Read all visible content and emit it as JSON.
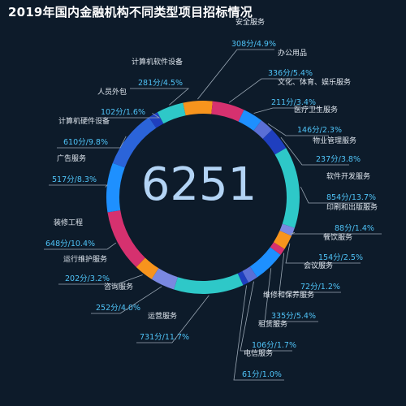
{
  "title": "2019年国内金融机构不同类型项目招标情况",
  "center_total": "6251",
  "chart_data": {
    "type": "pie",
    "title": "2019年国内金融机构不同类型项目招标情况",
    "total": 6251,
    "unit": "分",
    "slices": [
      {
        "name": "安全服务",
        "value": 308,
        "label": "308分/4.9%",
        "color": "#f7941d"
      },
      {
        "name": "办公用品",
        "value": 336,
        "label": "336分/5.4%",
        "color": "#d6316f"
      },
      {
        "name": "文化、体育、娱乐服务",
        "value": 211,
        "label": "211分/3.4%",
        "color": "#1e90ff"
      },
      {
        "name": "医疗卫生服务",
        "value": 146,
        "label": "146分/2.3%",
        "color": "#5a6fd6"
      },
      {
        "name": "物业管理服务",
        "value": 237,
        "label": "237分/3.8%",
        "color": "#1f3fbf"
      },
      {
        "name": "软件开发服务",
        "value": 854,
        "label": "854分/13.7%",
        "color": "#2ec8c8"
      },
      {
        "name": "印刷和出版服务",
        "value": 88,
        "label": "88分/1.4%",
        "color": "#7a88e0"
      },
      {
        "name": "餐饮服务",
        "value": 154,
        "label": "154分/2.5%",
        "color": "#f7941d"
      },
      {
        "name": "会议服务",
        "value": 72,
        "label": "72分/1.2%",
        "color": "#d6316f"
      },
      {
        "name": "维修和保养服务",
        "value": 335,
        "label": "335分/5.4%",
        "color": "#1e90ff"
      },
      {
        "name": "租赁服务",
        "value": 106,
        "label": "106分/1.7%",
        "color": "#5a6fd6"
      },
      {
        "name": "电信服务",
        "value": 61,
        "label": "61分/1.0%",
        "color": "#1f3fbf"
      },
      {
        "name": "运营服务",
        "value": 731,
        "label": "731分/11.7%",
        "color": "#2ec8c8"
      },
      {
        "name": "咨询服务",
        "value": 252,
        "label": "252分/4.0%",
        "color": "#7a88e0"
      },
      {
        "name": "运行维护服务",
        "value": 202,
        "label": "202分/3.2%",
        "color": "#f7941d"
      },
      {
        "name": "装修工程",
        "value": 648,
        "label": "648分/10.4%",
        "color": "#d6316f"
      },
      {
        "name": "广告服务",
        "value": 517,
        "label": "517分/8.3%",
        "color": "#1e90ff"
      },
      {
        "name": "计算机硬件设备",
        "value": 610,
        "label": "610分/9.8%",
        "color": "#2b64d9"
      },
      {
        "name": "人员外包",
        "value": 102,
        "label": "102分/1.6%",
        "color": "#1f3fbf"
      },
      {
        "name": "计算机软件设备",
        "value": 281,
        "label": "281分/4.5%",
        "color": "#2ec8c8"
      }
    ]
  }
}
